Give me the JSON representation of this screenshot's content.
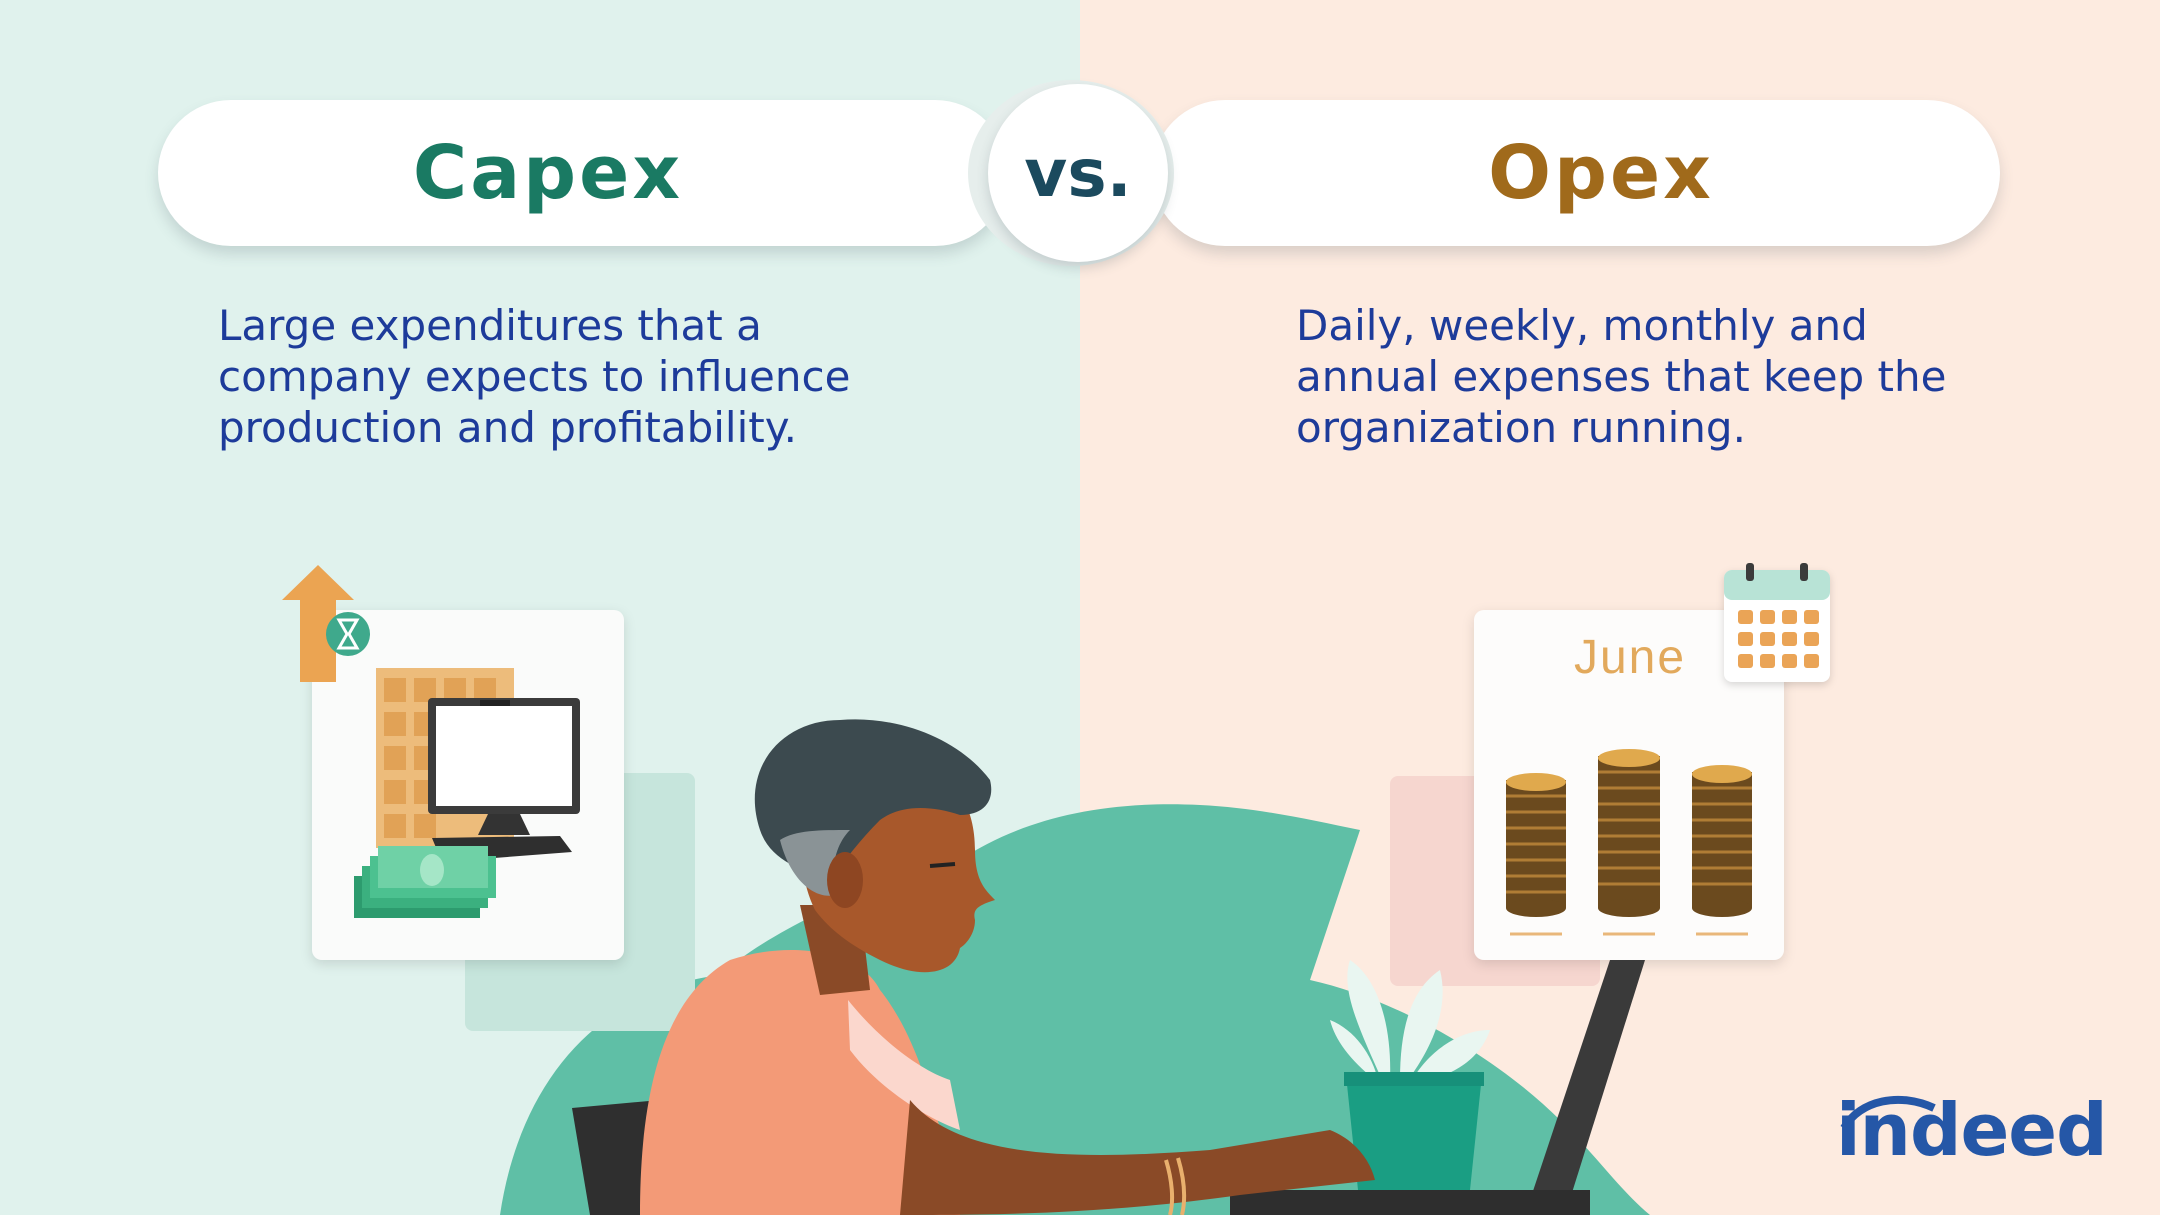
{
  "capex": {
    "title": "Capex",
    "description": "Large expenditures that a company expects to influence production and profitability."
  },
  "vs_label": "vs.",
  "opex": {
    "title": "Opex",
    "description": "Daily, weekly, monthly and annual expenses that keep the organization running.",
    "month_label": "June"
  },
  "brand": {
    "logo_text": "indeed"
  },
  "colors": {
    "left_background": "#e0f2ed",
    "right_background": "#fdebe0",
    "capex_accent": "#1a7a63",
    "opex_accent": "#a06a1b",
    "body_text": "#1d3b9a",
    "brand_blue": "#2557a7"
  },
  "icons": [
    "up-arrow-icon",
    "hourglass-icon",
    "building-icon",
    "computer-monitor-icon",
    "cash-stack-icon",
    "calendar-icon",
    "coin-stack-icon",
    "plant-icon",
    "laptop-icon"
  ]
}
